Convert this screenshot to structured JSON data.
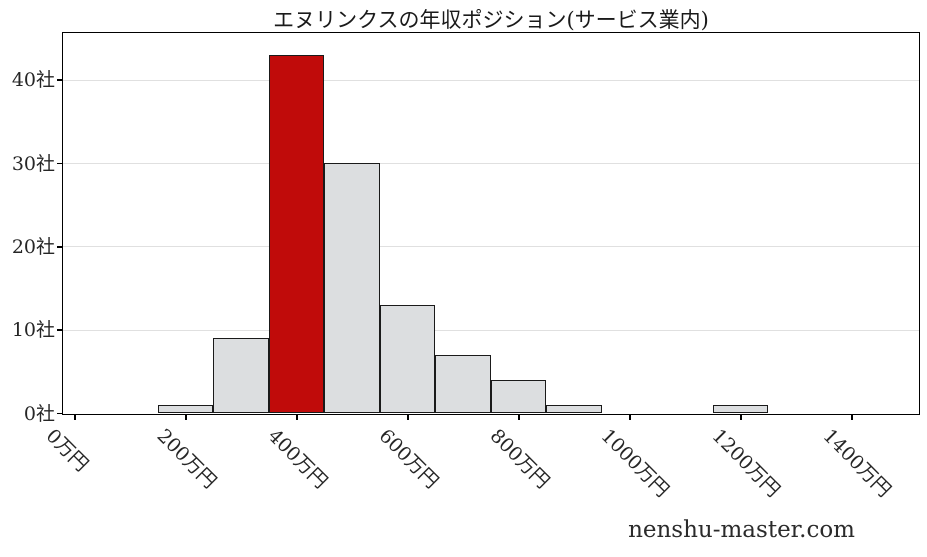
{
  "title": "エヌリンクスの年収ポジション(サービス業内)",
  "watermark": "nenshu-master.com",
  "chart_data": {
    "type": "bar",
    "subtype": "histogram",
    "title": "エヌリンクスの年収ポジション(サービス業内)",
    "xlabel": "",
    "ylabel": "",
    "unit_x": "万円",
    "unit_y": "社",
    "bin_start": 150,
    "bin_width": 100,
    "bin_centers": [
      200,
      300,
      400,
      500,
      600,
      700,
      800,
      900,
      1000,
      1100,
      1200
    ],
    "values": [
      1,
      9,
      43,
      30,
      13,
      7,
      4,
      1,
      0,
      0,
      1
    ],
    "highlight_index": 2,
    "x_ticks": [
      0,
      200,
      400,
      600,
      800,
      1000,
      1200,
      1400
    ],
    "x_tick_labels": [
      "0万円",
      "200万円",
      "400万円",
      "600万円",
      "800万円",
      "1000万円",
      "1200万円",
      "1400万円"
    ],
    "y_ticks": [
      0,
      10,
      20,
      30,
      40
    ],
    "y_tick_labels": [
      "0社",
      "10社",
      "20社",
      "30社",
      "40社"
    ],
    "xlim": [
      -21,
      1520
    ],
    "ylim": [
      0,
      45.6
    ],
    "grid": "horizontal",
    "legend": "none",
    "colors": {
      "bar_fill": "#dcdee0",
      "bar_highlight": "#c00b0a",
      "bar_edge": "#1a1a1a",
      "gridline": "#e0e0e0",
      "axis": "#000000",
      "text": "#262626"
    }
  }
}
